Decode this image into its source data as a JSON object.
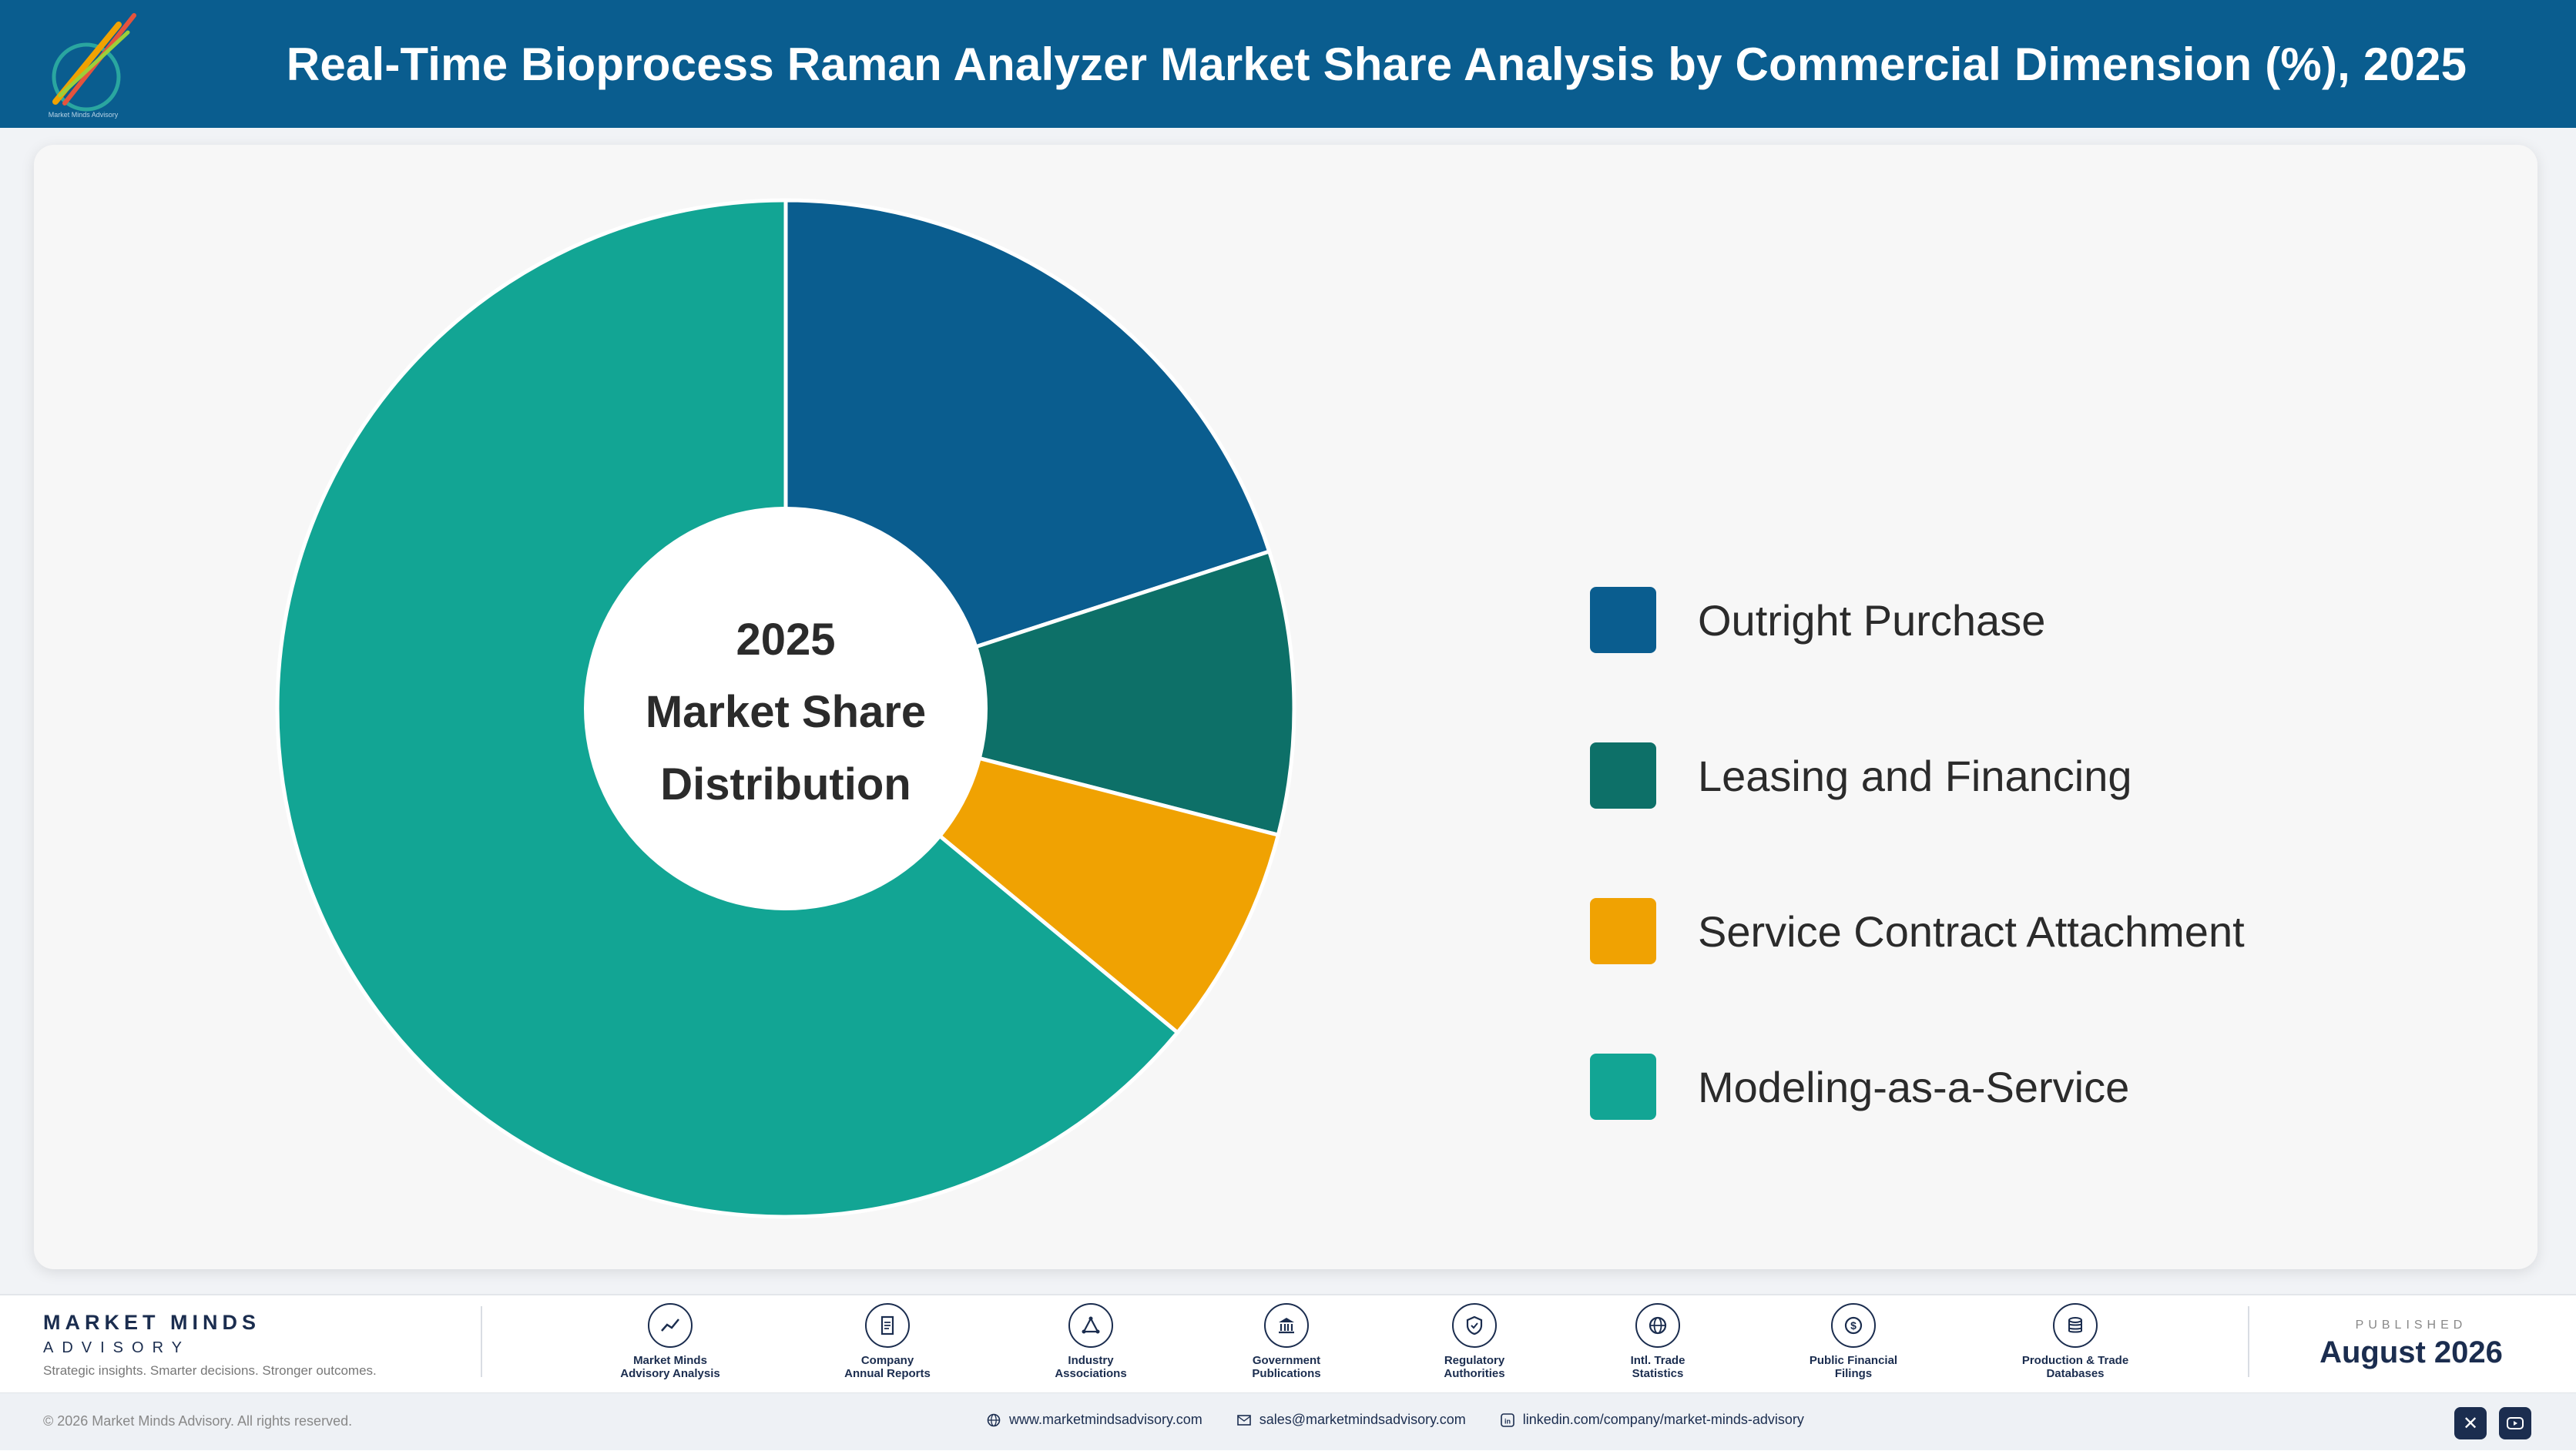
{
  "header": {
    "title": "Real-Time Bioprocess Raman Analyzer Market Share Analysis by Commercial Dimension (%), 2025",
    "logo_icon": "market-minds-logo"
  },
  "chart_data": {
    "type": "pie",
    "title": "Real-Time Bioprocess Raman Analyzer Market Share Analysis by Commercial Dimension (%), 2025",
    "center_label": [
      "2025",
      "Market Share",
      "Distribution"
    ],
    "legend_position": "right",
    "categories": [
      "Outright Purchase",
      "Leasing and Financing",
      "Service Contract Attachment",
      "Modeling-as-a-Service"
    ],
    "values": [
      20,
      9,
      7,
      64
    ],
    "colors": [
      "#0a5d8f",
      "#0d7068",
      "#f0a202",
      "#12a594"
    ]
  },
  "footer": {
    "brand_name": "MARKET MINDS",
    "brand_sub": "ADVISORY",
    "tagline": "Strategic insights. Smarter decisions. Stronger outcomes.",
    "sources": [
      {
        "label": "Market Minds\nAdvisory Analysis",
        "icon": "chart-line-icon"
      },
      {
        "label": "Company\nAnnual Reports",
        "icon": "document-icon"
      },
      {
        "label": "Industry\nAssociations",
        "icon": "network-icon"
      },
      {
        "label": "Government\nPublications",
        "icon": "building-icon"
      },
      {
        "label": "Regulatory\nAuthorities",
        "icon": "shield-icon"
      },
      {
        "label": "Intl. Trade\nStatistics",
        "icon": "globe-icon"
      },
      {
        "label": "Public Financial\nFilings",
        "icon": "dollar-icon"
      },
      {
        "label": "Production & Trade\nDatabases",
        "icon": "database-icon"
      }
    ],
    "published_label": "PUBLISHED",
    "published_date": "August 2026",
    "copyright": "© 2026 Market Minds Advisory. All rights reserved.",
    "website": "www.marketmindsadvisory.com",
    "email": "sales@marketmindsadvisory.com",
    "linkedin": "linkedin.com/company/market-minds-advisory"
  }
}
